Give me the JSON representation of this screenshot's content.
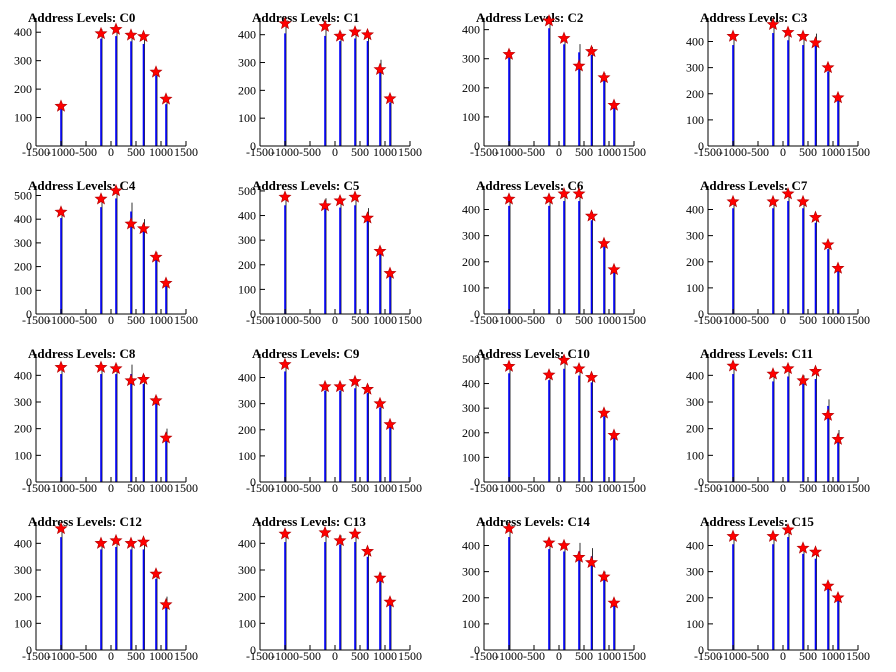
{
  "figure": {
    "background": "#ffffff"
  },
  "colors": {
    "bar": "#0000ff",
    "peak": "#ff0000",
    "axis": "#000000"
  },
  "chart_data": [
    {
      "type": "bar",
      "title": "Address Levels: C0",
      "xlim": [
        -1500,
        1500
      ],
      "xticks": [
        -1500,
        -1000,
        -500,
        0,
        500,
        1000,
        1500
      ],
      "ylim": [
        0,
        450
      ],
      "yticks": [
        0,
        100,
        200,
        300,
        400
      ],
      "x": [
        -1000,
        -200,
        100,
        400,
        650,
        900,
        1100
      ],
      "values": [
        150,
        410,
        420,
        400,
        390,
        270,
        160
      ],
      "peaks": [
        140,
        395,
        410,
        390,
        385,
        260,
        165
      ]
    },
    {
      "type": "bar",
      "title": "Address Levels: C1",
      "xlim": [
        -1500,
        1500
      ],
      "xticks": [
        -1500,
        -1000,
        -500,
        0,
        500,
        1000,
        1500
      ],
      "ylim": [
        0,
        460
      ],
      "yticks": [
        0,
        100,
        200,
        300,
        400
      ],
      "x": [
        -1000,
        -200,
        100,
        400,
        650,
        900,
        1100
      ],
      "values": [
        440,
        430,
        410,
        420,
        410,
        310,
        170
      ],
      "peaks": [
        440,
        430,
        395,
        410,
        400,
        275,
        170
      ]
    },
    {
      "type": "bar",
      "title": "Address Levels: C2",
      "xlim": [
        -1500,
        1500
      ],
      "xticks": [
        -1500,
        -1000,
        -500,
        0,
        500,
        1000,
        1500
      ],
      "ylim": [
        0,
        440
      ],
      "yticks": [
        0,
        100,
        200,
        300,
        400
      ],
      "x": [
        -1000,
        -200,
        100,
        400,
        650,
        900,
        1100
      ],
      "values": [
        330,
        440,
        380,
        350,
        340,
        250,
        150
      ],
      "peaks": [
        315,
        430,
        370,
        275,
        325,
        235,
        140
      ]
    },
    {
      "type": "bar",
      "title": "Address Levels: C3",
      "xlim": [
        -1500,
        1500
      ],
      "xticks": [
        -1500,
        -1000,
        -500,
        0,
        500,
        1000,
        1500
      ],
      "ylim": [
        0,
        490
      ],
      "yticks": [
        0,
        100,
        200,
        300,
        400
      ],
      "x": [
        -1000,
        -200,
        100,
        400,
        650,
        900,
        1100
      ],
      "values": [
        420,
        470,
        440,
        420,
        430,
        310,
        190
      ],
      "peaks": [
        420,
        465,
        435,
        420,
        395,
        300,
        185
      ]
    },
    {
      "type": "bar",
      "title": "Address Levels: C4",
      "xlim": [
        -1500,
        1500
      ],
      "xticks": [
        -1500,
        -1000,
        -500,
        0,
        500,
        1000,
        1500
      ],
      "ylim": [
        0,
        540
      ],
      "yticks": [
        0,
        100,
        200,
        300,
        400,
        500
      ],
      "x": [
        -1000,
        -200,
        100,
        400,
        650,
        900,
        1100
      ],
      "values": [
        440,
        490,
        530,
        470,
        400,
        260,
        140
      ],
      "peaks": [
        430,
        485,
        520,
        380,
        360,
        240,
        130
      ]
    },
    {
      "type": "bar",
      "title": "Address Levels: C5",
      "xlim": [
        -1500,
        1500
      ],
      "xticks": [
        -1500,
        -1000,
        -500,
        0,
        500,
        1000,
        1500
      ],
      "ylim": [
        0,
        520
      ],
      "yticks": [
        0,
        100,
        200,
        300,
        400,
        500
      ],
      "x": [
        -1000,
        -200,
        100,
        400,
        650,
        900,
        1100
      ],
      "values": [
        480,
        470,
        470,
        480,
        430,
        270,
        170
      ],
      "peaks": [
        475,
        440,
        460,
        475,
        390,
        255,
        165
      ]
    },
    {
      "type": "bar",
      "title": "Address Levels: C6",
      "xlim": [
        -1500,
        1500
      ],
      "xticks": [
        -1500,
        -1000,
        -500,
        0,
        500,
        1000,
        1500
      ],
      "ylim": [
        0,
        490
      ],
      "yticks": [
        0,
        100,
        200,
        300,
        400
      ],
      "x": [
        -1000,
        -200,
        100,
        400,
        650,
        900,
        1100
      ],
      "values": [
        450,
        450,
        470,
        470,
        390,
        280,
        180
      ],
      "peaks": [
        440,
        440,
        460,
        460,
        375,
        270,
        170
      ]
    },
    {
      "type": "bar",
      "title": "Address Levels: C7",
      "xlim": [
        -1500,
        1500
      ],
      "xticks": [
        -1500,
        -1000,
        -500,
        0,
        500,
        1000,
        1500
      ],
      "ylim": [
        0,
        490
      ],
      "yticks": [
        0,
        100,
        200,
        300,
        400
      ],
      "x": [
        -1000,
        -200,
        100,
        400,
        650,
        900,
        1100
      ],
      "values": [
        440,
        440,
        470,
        440,
        380,
        270,
        180
      ],
      "peaks": [
        430,
        430,
        460,
        430,
        370,
        265,
        175
      ]
    },
    {
      "type": "bar",
      "title": "Address Levels: C8",
      "xlim": [
        -1500,
        1500
      ],
      "xticks": [
        -1500,
        -1000,
        -500,
        0,
        500,
        1000,
        1500
      ],
      "ylim": [
        0,
        480
      ],
      "yticks": [
        0,
        100,
        200,
        300,
        400
      ],
      "x": [
        -1000,
        -200,
        100,
        400,
        650,
        900,
        1100
      ],
      "values": [
        440,
        440,
        440,
        440,
        400,
        320,
        200
      ],
      "peaks": [
        430,
        430,
        425,
        380,
        385,
        305,
        165
      ]
    },
    {
      "type": "bar",
      "title": "Address Levels: C9",
      "xlim": [
        -1500,
        1500
      ],
      "xticks": [
        -1500,
        -1000,
        -500,
        0,
        500,
        1000,
        1500
      ],
      "ylim": [
        0,
        490
      ],
      "yticks": [
        0,
        100,
        200,
        300,
        400
      ],
      "x": [
        -1000,
        -200,
        100,
        400,
        650,
        900,
        1100
      ],
      "values": [
        460,
        380,
        380,
        390,
        370,
        310,
        230
      ],
      "peaks": [
        450,
        365,
        365,
        385,
        355,
        300,
        220
      ]
    },
    {
      "type": "bar",
      "title": "Address Levels: C10",
      "xlim": [
        -1500,
        1500
      ],
      "xticks": [
        -1500,
        -1000,
        -500,
        0,
        500,
        1000,
        1500
      ],
      "ylim": [
        0,
        520
      ],
      "yticks": [
        0,
        100,
        200,
        300,
        400,
        500
      ],
      "x": [
        -1000,
        -200,
        100,
        400,
        650,
        900,
        1100
      ],
      "values": [
        480,
        450,
        500,
        470,
        440,
        290,
        200
      ],
      "peaks": [
        470,
        435,
        495,
        460,
        425,
        280,
        190
      ]
    },
    {
      "type": "bar",
      "title": "Address Levels: C11",
      "xlim": [
        -1500,
        1500
      ],
      "xticks": [
        -1500,
        -1000,
        -500,
        0,
        500,
        1000,
        1500
      ],
      "ylim": [
        0,
        480
      ],
      "yticks": [
        0,
        100,
        200,
        300,
        400
      ],
      "x": [
        -1000,
        -200,
        100,
        400,
        650,
        900,
        1100
      ],
      "values": [
        440,
        410,
        430,
        400,
        420,
        310,
        195
      ],
      "peaks": [
        435,
        405,
        425,
        380,
        415,
        250,
        160
      ]
    },
    {
      "type": "bar",
      "title": "Address Levels: C12",
      "xlim": [
        -1500,
        1500
      ],
      "xticks": [
        -1500,
        -1000,
        -500,
        0,
        500,
        1000,
        1500
      ],
      "ylim": [
        0,
        480
      ],
      "yticks": [
        0,
        100,
        200,
        300,
        400
      ],
      "x": [
        -1000,
        -200,
        100,
        400,
        650,
        900,
        1100
      ],
      "values": [
        460,
        410,
        420,
        410,
        410,
        290,
        200
      ],
      "peaks": [
        455,
        400,
        410,
        400,
        405,
        285,
        170
      ]
    },
    {
      "type": "bar",
      "title": "Address Levels: C13",
      "xlim": [
        -1500,
        1500
      ],
      "xticks": [
        -1500,
        -1000,
        -500,
        0,
        500,
        1000,
        1500
      ],
      "ylim": [
        0,
        480
      ],
      "yticks": [
        0,
        100,
        200,
        300,
        400
      ],
      "x": [
        -1000,
        -200,
        100,
        400,
        650,
        900,
        1100
      ],
      "values": [
        440,
        440,
        430,
        440,
        380,
        290,
        190
      ],
      "peaks": [
        435,
        440,
        410,
        435,
        370,
        270,
        180
      ]
    },
    {
      "type": "bar",
      "title": "Address Levels: C14",
      "xlim": [
        -1500,
        1500
      ],
      "xticks": [
        -1500,
        -1000,
        -500,
        0,
        500,
        1000,
        1500
      ],
      "ylim": [
        0,
        490
      ],
      "yticks": [
        0,
        100,
        200,
        300,
        400
      ],
      "x": [
        -1000,
        -200,
        100,
        400,
        650,
        900,
        1100
      ],
      "values": [
        470,
        420,
        410,
        410,
        390,
        300,
        190
      ],
      "peaks": [
        465,
        410,
        400,
        355,
        335,
        280,
        180
      ]
    },
    {
      "type": "bar",
      "title": "Address Levels: C15",
      "xlim": [
        -1500,
        1500
      ],
      "xticks": [
        -1500,
        -1000,
        -500,
        0,
        500,
        1000,
        1500
      ],
      "ylim": [
        0,
        490
      ],
      "yticks": [
        0,
        100,
        200,
        300,
        400
      ],
      "x": [
        -1000,
        -200,
        100,
        400,
        650,
        900,
        1100
      ],
      "values": [
        440,
        440,
        470,
        400,
        380,
        260,
        210
      ],
      "peaks": [
        435,
        435,
        460,
        390,
        375,
        245,
        200
      ]
    }
  ]
}
